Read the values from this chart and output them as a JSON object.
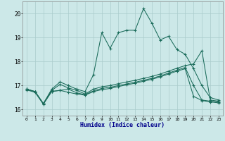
{
  "xlabel": "Humidex (Indice chaleur)",
  "xlim_min": -0.5,
  "xlim_max": 23.5,
  "ylim_min": 15.75,
  "ylim_max": 20.5,
  "yticks": [
    16,
    17,
    18,
    19,
    20
  ],
  "xticks": [
    0,
    1,
    2,
    3,
    4,
    5,
    6,
    7,
    8,
    9,
    10,
    11,
    12,
    13,
    14,
    15,
    16,
    17,
    18,
    19,
    20,
    21,
    22,
    23
  ],
  "bg_color": "#cce8e8",
  "grid_color": "#aacccc",
  "line_color": "#1a6b5a",
  "s1_x": [
    0,
    1,
    2,
    3,
    4,
    5,
    6,
    7,
    8,
    9,
    10,
    11,
    12,
    13,
    14,
    15,
    16,
    17,
    18,
    19,
    20,
    21,
    22,
    23
  ],
  "s1_y": [
    16.85,
    16.75,
    16.25,
    16.85,
    17.15,
    17.0,
    16.85,
    16.75,
    17.45,
    19.2,
    18.55,
    19.2,
    19.3,
    19.3,
    20.2,
    19.6,
    18.9,
    19.05,
    18.5,
    18.3,
    17.7,
    17.0,
    16.5,
    16.4
  ],
  "s2_x": [
    0,
    1,
    2,
    3,
    4,
    5,
    6,
    7,
    8,
    9,
    10,
    11,
    12,
    13,
    14,
    15,
    16,
    17,
    18,
    19,
    20,
    21,
    22,
    23
  ],
  "s2_y": [
    16.85,
    16.75,
    16.25,
    16.8,
    17.05,
    16.9,
    16.8,
    16.65,
    16.85,
    16.95,
    17.0,
    17.08,
    17.15,
    17.22,
    17.3,
    17.38,
    17.48,
    17.6,
    17.72,
    17.83,
    17.9,
    18.45,
    16.4,
    16.35
  ],
  "s3_x": [
    0,
    1,
    2,
    3,
    4,
    5,
    6,
    7,
    8,
    9,
    10,
    11,
    12,
    13,
    14,
    15,
    16,
    17,
    18,
    19,
    20,
    21,
    22,
    23
  ],
  "s3_y": [
    16.82,
    16.72,
    16.22,
    16.76,
    16.8,
    16.85,
    16.7,
    16.62,
    16.78,
    16.88,
    16.93,
    17.0,
    17.07,
    17.14,
    17.22,
    17.3,
    17.4,
    17.52,
    17.64,
    17.75,
    17.0,
    16.4,
    16.35,
    16.32
  ],
  "s4_x": [
    0,
    1,
    2,
    3,
    4,
    5,
    6,
    7,
    8,
    9,
    10,
    11,
    12,
    13,
    14,
    15,
    16,
    17,
    18,
    19,
    20,
    21,
    22,
    23
  ],
  "s4_y": [
    16.85,
    16.75,
    16.25,
    16.75,
    16.8,
    16.72,
    16.65,
    16.6,
    16.75,
    16.83,
    16.88,
    16.96,
    17.03,
    17.1,
    17.18,
    17.26,
    17.36,
    17.48,
    17.6,
    17.7,
    16.55,
    16.38,
    16.32,
    16.28
  ]
}
